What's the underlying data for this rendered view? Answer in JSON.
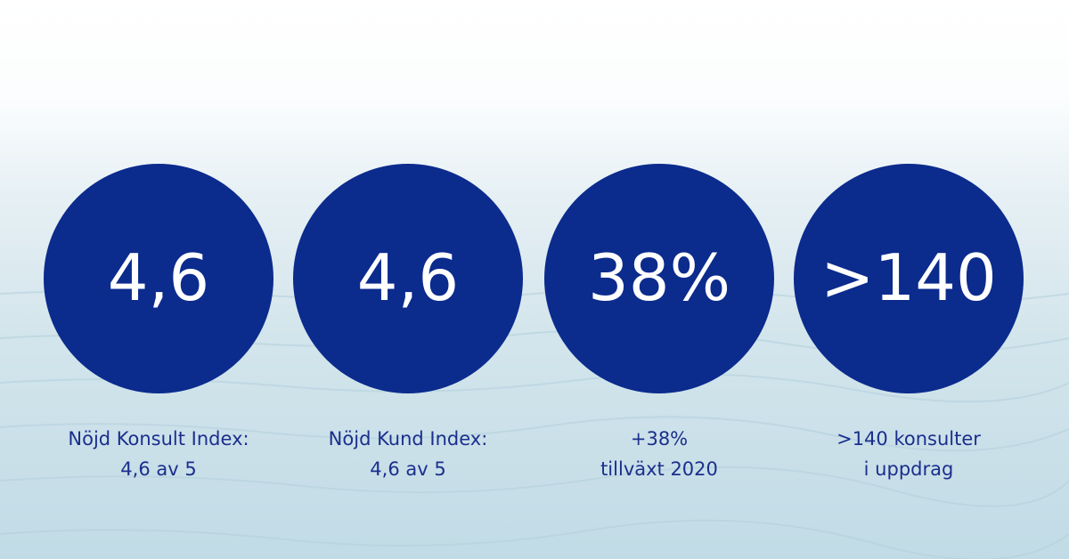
{
  "stats": [
    {
      "value": "4,6",
      "caption": [
        "Nöjd Konsult Index:",
        "4,6 av 5"
      ]
    },
    {
      "value": "4,6",
      "caption": [
        "Nöjd Kund Index:",
        "4,6 av 5"
      ]
    },
    {
      "value": "38%",
      "caption": [
        "+38%",
        "tillväxt 2020"
      ]
    },
    {
      "value": ">140",
      "caption": [
        ">140 konsulter",
        "i uppdrag"
      ]
    }
  ]
}
